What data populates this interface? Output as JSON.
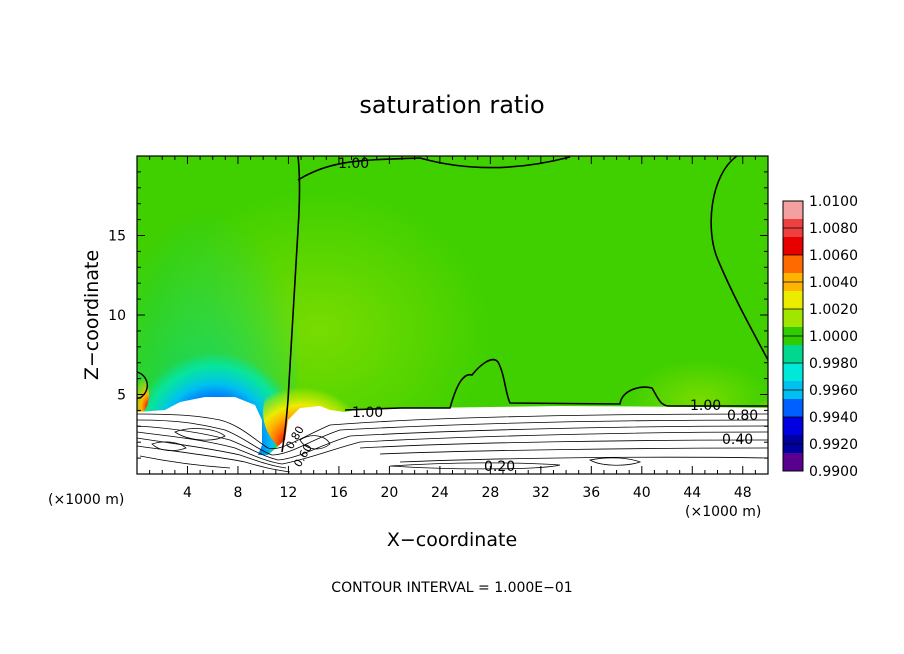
{
  "chart_data": {
    "type": "heatmap",
    "title": "saturation ratio",
    "xlabel": "X−coordinate",
    "ylabel": "Z−coordinate",
    "x_unit_left": "(×1000 m)",
    "x_unit_right": "(×1000 m)",
    "footer": "CONTOUR INTERVAL = 1.000E−01",
    "xlim": [
      0,
      50
    ],
    "ylim": [
      0,
      20
    ],
    "x_ticks": [
      "4",
      "8",
      "12",
      "16",
      "20",
      "24",
      "28",
      "32",
      "36",
      "40",
      "44",
      "48"
    ],
    "y_ticks": [
      "5",
      "10",
      "15"
    ],
    "colorbar": {
      "labels": [
        "1.0100",
        "1.0080",
        "1.0060",
        "1.0040",
        "1.0020",
        "1.0000",
        "0.9980",
        "0.9960",
        "0.9940",
        "0.9920",
        "0.9900"
      ],
      "colors": [
        "#f4a0a0",
        "#ee4040",
        "#e80000",
        "#ff6a00",
        "#ffb400",
        "#ecec00",
        "#a0e600",
        "#30cc00",
        "#00d890",
        "#00e8d8",
        "#00c0f0",
        "#0060ff",
        "#0000e0",
        "#0000a0",
        "#5a0090"
      ]
    },
    "contour_labels": [
      "1.00",
      "1.00",
      "1.00",
      "0.80",
      "0.40",
      "0.20",
      "0.80",
      "0.60"
    ],
    "background_color": "#40d000"
  }
}
